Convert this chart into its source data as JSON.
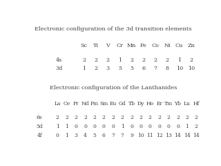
{
  "title1": "Electronic configuration of the 3d transition elements",
  "elements1": [
    "Sc",
    "Ti",
    "V",
    "Cr",
    "Mn",
    "Fe",
    "Co",
    "Ni",
    "Cu",
    "Zn"
  ],
  "orbitals1": [
    "4s",
    "3d"
  ],
  "values1": [
    [
      2,
      2,
      2,
      1,
      2,
      2,
      2,
      2,
      1,
      2
    ],
    [
      1,
      2,
      3,
      5,
      5,
      6,
      7,
      8,
      10,
      10
    ]
  ],
  "title2": "Electronic configuration of the Lanthanides",
  "elements2": [
    "La",
    "Ce",
    "Pr",
    "Nd",
    "Pm",
    "Sm",
    "Eu",
    "Gd",
    "Tb",
    "Dy",
    "Ho",
    "Er",
    "Tm",
    "Yb",
    "Lu",
    "Hf"
  ],
  "orbitals2": [
    "6s",
    "5d",
    "4f"
  ],
  "values2": [
    [
      2,
      2,
      2,
      2,
      2,
      2,
      2,
      2,
      2,
      2,
      2,
      2,
      2,
      2,
      2,
      2
    ],
    [
      1,
      1,
      0,
      0,
      0,
      0,
      0,
      1,
      0,
      0,
      0,
      0,
      0,
      0,
      1,
      2
    ],
    [
      0,
      1,
      3,
      4,
      5,
      6,
      7,
      7,
      9,
      10,
      11,
      12,
      13,
      14,
      14,
      14
    ]
  ],
  "bg_color": "#ffffff",
  "text_color": "#404040",
  "fontsize_title": 6.0,
  "fontsize_elem": 5.8,
  "fontsize_data": 5.8,
  "fontsize_orb": 5.8
}
